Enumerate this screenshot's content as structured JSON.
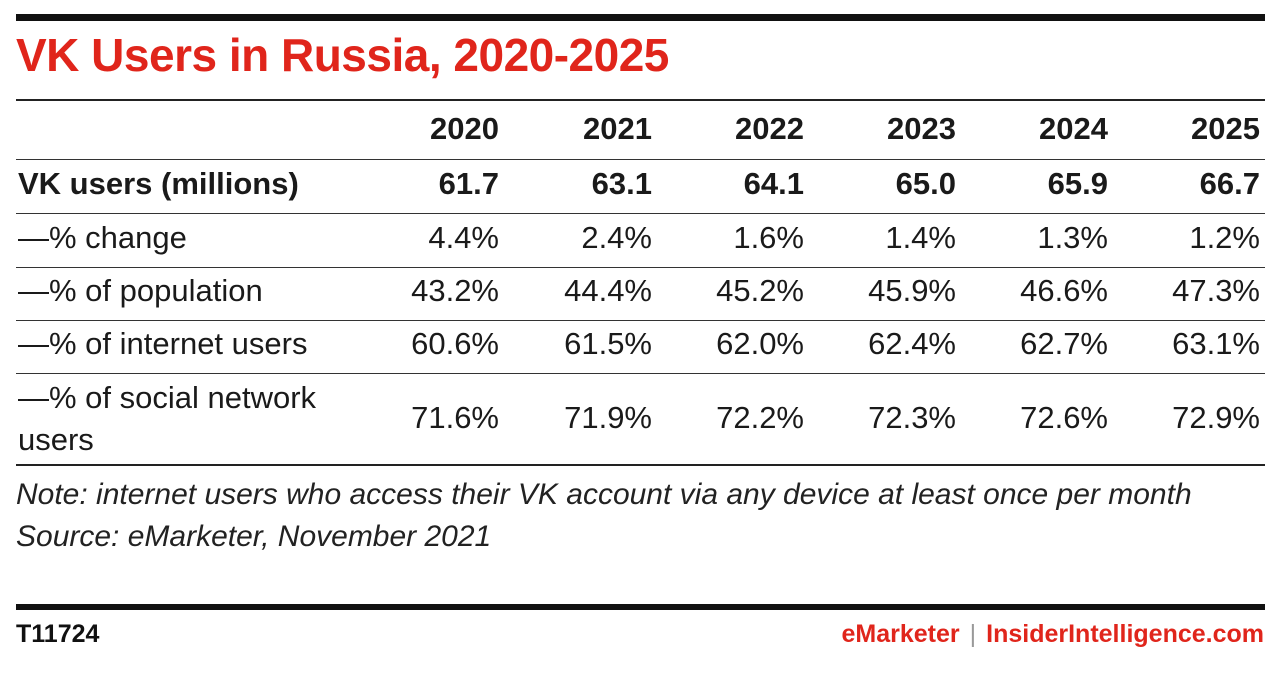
{
  "title": "VK Users in Russia, 2020-2025",
  "chart_data": {
    "type": "table",
    "title": "VK Users in Russia, 2020-2025",
    "columns": [
      "2020",
      "2021",
      "2022",
      "2023",
      "2024",
      "2025"
    ],
    "rows": [
      {
        "label": "VK users (millions)",
        "values": [
          "61.7",
          "63.1",
          "64.1",
          "65.0",
          "65.9",
          "66.7"
        ]
      },
      {
        "label": "—% change",
        "values": [
          "4.4%",
          "2.4%",
          "1.6%",
          "1.4%",
          "1.3%",
          "1.2%"
        ]
      },
      {
        "label": "—% of population",
        "values": [
          "43.2%",
          "44.4%",
          "45.2%",
          "45.9%",
          "46.6%",
          "47.3%"
        ]
      },
      {
        "label": "—% of internet users",
        "values": [
          "60.6%",
          "61.5%",
          "62.0%",
          "62.4%",
          "62.7%",
          "63.1%"
        ]
      },
      {
        "label": "—% of social network users",
        "values": [
          "71.6%",
          "71.9%",
          "72.2%",
          "72.3%",
          "72.6%",
          "72.9%"
        ]
      }
    ]
  },
  "note": "Note: internet users who access their VK account via any device at least once per month",
  "source": "Source: eMarketer, November 2021",
  "footer": {
    "chart_id": "T11724",
    "brand_a": "eMarketer",
    "separator": "|",
    "brand_b": "InsiderIntelligence.com"
  },
  "colors": {
    "accent": "#e0251b",
    "rule": "#111111"
  }
}
